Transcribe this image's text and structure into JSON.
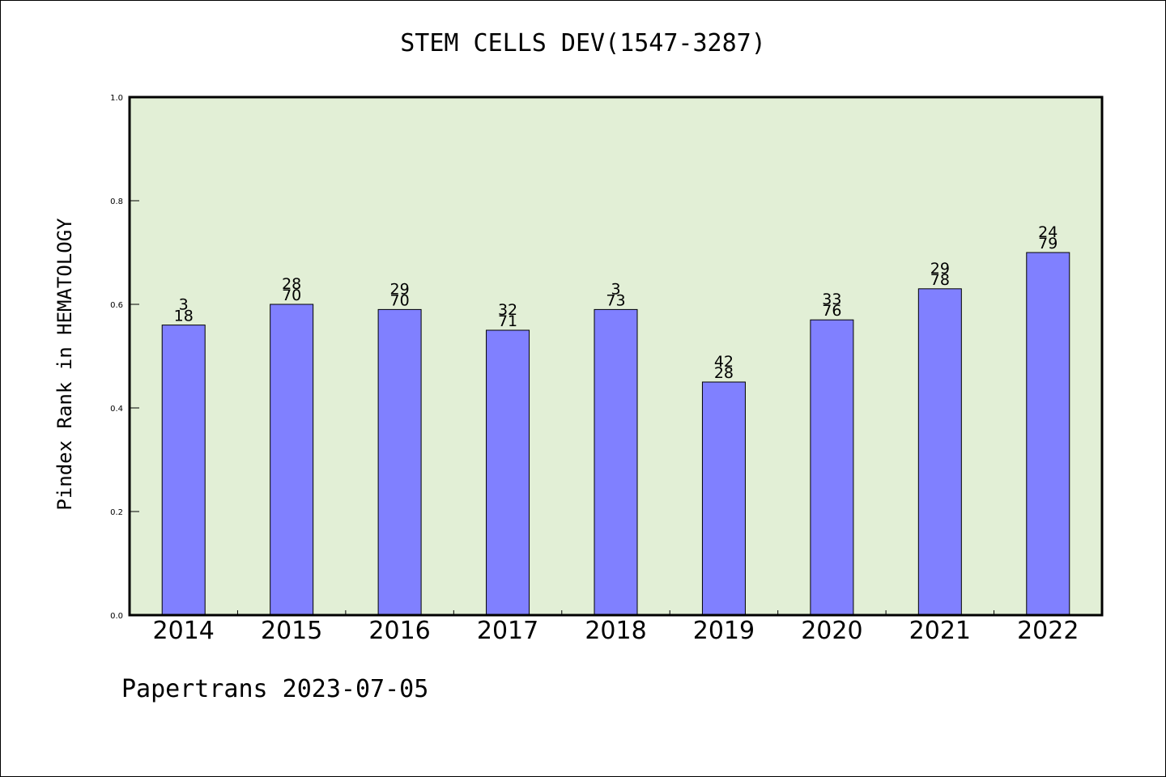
{
  "chart_data": {
    "type": "bar",
    "title": "STEM CELLS DEV(1547-3287)",
    "ylabel": "Pindex Rank in HEMATOLOGY",
    "xlabel": "",
    "categories": [
      "2014",
      "2015",
      "2016",
      "2017",
      "2018",
      "2019",
      "2020",
      "2021",
      "2022"
    ],
    "values": [
      0.56,
      0.6,
      0.59,
      0.55,
      0.59,
      0.45,
      0.57,
      0.63,
      0.7
    ],
    "label_top": [
      "3",
      "28",
      "29",
      "32",
      "3",
      "42",
      "33",
      "29",
      "24"
    ],
    "label_bottom": [
      "18",
      "70",
      "70",
      "71",
      "73",
      "28",
      "76",
      "78",
      "79"
    ],
    "ylim": [
      0.0,
      1.0
    ],
    "yticks": [
      "0.0",
      "0.2",
      "0.4",
      "0.6",
      "0.8",
      "1.0"
    ],
    "grid": false,
    "colors": {
      "bar": "#8080ff",
      "plot_background": "#e2efd6"
    }
  },
  "footer": "Papertrans 2023-07-05"
}
